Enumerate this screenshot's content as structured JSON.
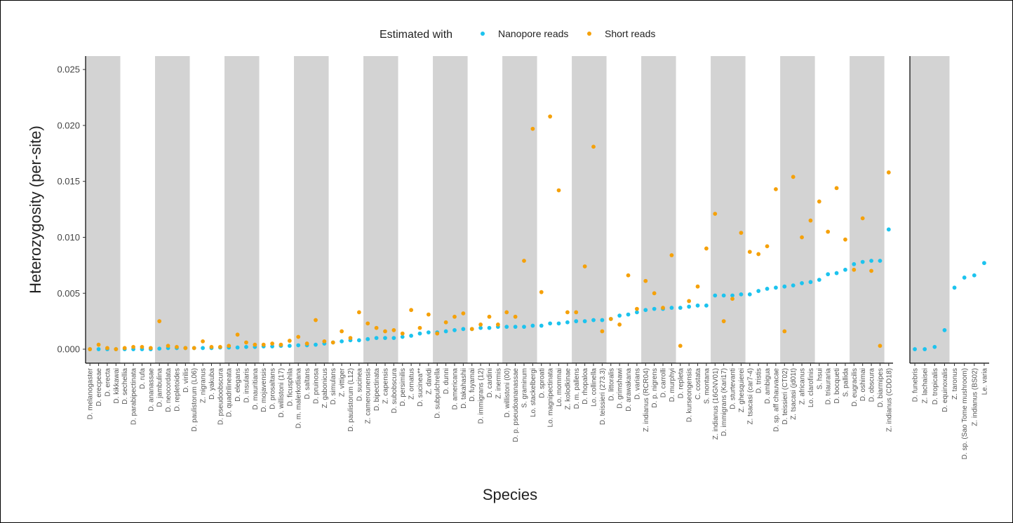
{
  "chart_data": [
    {
      "type": "scatter",
      "legend_title": "Estimated with",
      "x_label": "Species",
      "y_label": "Heterozygosity (per-site)",
      "stripes": true,
      "stripe_color": "#d3d3d3",
      "ylim": [
        -0.00125,
        0.0262
      ],
      "yticks": [
        {
          "value": 0,
          "label": "0.000"
        },
        {
          "value": 0.005,
          "label": "0.005"
        },
        {
          "value": 0.01,
          "label": "0.010"
        },
        {
          "value": 0.015,
          "label": "0.015"
        },
        {
          "value": 0.02,
          "label": "0.020"
        },
        {
          "value": 0.025,
          "label": "0.025"
        }
      ],
      "categories": [
        "D. melanogaster",
        "D. erecpeae",
        "D. erecta",
        "D. kikkawai",
        "D. sechellia",
        "D. parabipectinata",
        "D. rufa",
        "D. ananassae",
        "D. jambulina",
        "D. neocordata",
        "D. repletoides",
        "D. virilis",
        "D. paulistorum (L06)",
        "Z. nigranus",
        "D. yakuba",
        "D. pseudoobscura",
        "D. quadrilineata",
        "D. elegans",
        "D. insularis",
        "D. mauritiana",
        "D. mojavensis",
        "D. prosaltans",
        "D. willistoni (17)",
        "D. ficusphila",
        "D. m. malerkotliana",
        "D. saltans",
        "D. pruinosa",
        "Z. gabonicus",
        "D. simulans",
        "Z. vittiger",
        "D. paulistorum (L12)",
        "D. sucinea",
        "Z. camerounensis",
        "D. bipectinata",
        "Z. capensis",
        "D. subobscura",
        "D. persimilis",
        "Z. ornatus",
        "D. sucinea**",
        "Z. davidi",
        "D. subpulchrella",
        "D. dunni",
        "D. americana",
        "D. takahashii",
        "D. fuyamai",
        "D. immigrans (12)",
        "D. cardini",
        "Z. inermis",
        "D. willistoni (00)",
        "D. p. pseudoananassae",
        "S. graminum",
        "Lo. stackelbergi",
        "D. sproati",
        "Lo. magnipectinata",
        "Lo. mommai",
        "Z. kolodkinae",
        "D. m. pallens",
        "D. rhopaloa",
        "Lo. collinella",
        "D. teissieri (273.3)",
        "D. littoralis",
        "D. grimshawi",
        "D. arawakana",
        "D. varians",
        "Z. indianus (RCR04)",
        "D. p. nigrens",
        "D. carrolli",
        "D. murphyi",
        "D. repleta",
        "D. kurseongensis",
        "C. costata",
        "S. montana",
        "Z. indianus (16GNV01)",
        "D. immigrans (Kari17)",
        "D. sturtevanti",
        "Z. ghesquierei",
        "Z. tsacasi (car7-4)",
        "D. tristis",
        "D. ambigua",
        "D. sp. aff chauvacae",
        "D. teissieri (CT02)",
        "Z. tsacasi (jd01t)",
        "Z. africanus",
        "Lo. clarofinis",
        "S. hsui",
        "D. triauraria",
        "D. bocqueti",
        "S. pallida",
        "D. eugracilis",
        "D. oshimai",
        "D. obscura",
        "D. biarmipes",
        "Z. indianus (CDD18)"
      ],
      "series": [
        {
          "name": "Nanopore reads",
          "color": "#1cc3ee",
          "values": [
            0,
            0,
            0,
            0,
            0,
            0,
            0,
            0,
            5e-05,
            0.0001,
            0.0001,
            0.0001,
            0.0001,
            0.0001,
            0.0001,
            0.00015,
            0.00015,
            0.00015,
            0.0002,
            0.0002,
            0.00025,
            0.00025,
            0.0003,
            0.0003,
            0.00035,
            0.00035,
            0.0004,
            0.0005,
            0.0006,
            0.0007,
            0.0008,
            0.0008,
            0.0009,
            0.001,
            0.001,
            0.001,
            0.0011,
            0.0012,
            0.0014,
            0.0015,
            0.0015,
            0.0016,
            0.0017,
            0.0018,
            0.0018,
            0.0019,
            0.0019,
            0.002,
            0.002,
            0.002,
            0.002,
            0.0021,
            0.0021,
            0.0023,
            0.0023,
            0.0024,
            0.0025,
            0.0025,
            0.0026,
            0.0026,
            0.0027,
            0.003,
            0.0031,
            0.0033,
            0.0035,
            0.0036,
            0.0036,
            0.0037,
            0.0037,
            0.0038,
            0.0039,
            0.0039,
            0.0048,
            0.0048,
            0.0048,
            0.0049,
            0.0049,
            0.0052,
            0.0054,
            0.0055,
            0.0056,
            0.0057,
            0.0059,
            0.006,
            0.0062,
            0.0067,
            0.0068,
            0.0071,
            0.0076,
            0.0078,
            0.0079,
            0.0079,
            0.0107
          ]
        },
        {
          "name": "Short reads",
          "color": "#f5a10a",
          "values": [
            0,
            0.0004,
            0.0001,
            0,
            0.0001,
            0.0002,
            0.0002,
            0.0001,
            0.0025,
            0.0003,
            0.0002,
            0.0001,
            0.0001,
            0.0007,
            0.0002,
            0.0002,
            0.0003,
            0.0013,
            0.0006,
            0.0004,
            0.0004,
            0.0005,
            0.0004,
            0.00075,
            0.0011,
            0.0005,
            0.0026,
            0.0007,
            0.0006,
            0.0016,
            0.001,
            0.0033,
            0.0023,
            0.0019,
            0.0016,
            0.0017,
            0.0014,
            0.0035,
            0.0019,
            0.0031,
            0.0014,
            0.0024,
            0.0029,
            0.0032,
            0.0018,
            0.0022,
            0.0029,
            0.0022,
            0.0033,
            0.0029,
            0.0079,
            0.0197,
            0.0051,
            0.0208,
            0.0142,
            0.0033,
            0.0033,
            0.0074,
            0.0181,
            0.0016,
            0.0027,
            0.0022,
            0.0066,
            0.0036,
            0.0061,
            0.005,
            0.0037,
            0.0084,
            0.0003,
            0.0043,
            0.0056,
            0.009,
            0.0121,
            0.0025,
            0.0045,
            0.0104,
            0.0087,
            0.0085,
            0.0092,
            0.0143,
            0.0016,
            0.0154,
            0.01,
            0.0115,
            0.0132,
            0.0105,
            0.0144,
            0.0098,
            0.0071,
            0.0117,
            0.007,
            0.0003,
            0.0158
          ]
        }
      ]
    },
    {
      "type": "scatter",
      "stripes": true,
      "stripe_color": "#d3d3d3",
      "ylim": [
        -0.00125,
        0.0262
      ],
      "categories": [
        "D. funebris",
        "Z. lachaisei",
        "D. tropicalis",
        "D. equinoxalis",
        "Z. taronus",
        "D. sp. (Sao Tome mushroom)",
        "Z. indianus (BS02)",
        "Le. varia"
      ],
      "series": [
        {
          "color": "#1cc3ee",
          "values": [
            0,
            0,
            0.0002,
            0.0017,
            0.0055,
            0.0064,
            0.0066,
            0.0077
          ]
        }
      ]
    }
  ]
}
